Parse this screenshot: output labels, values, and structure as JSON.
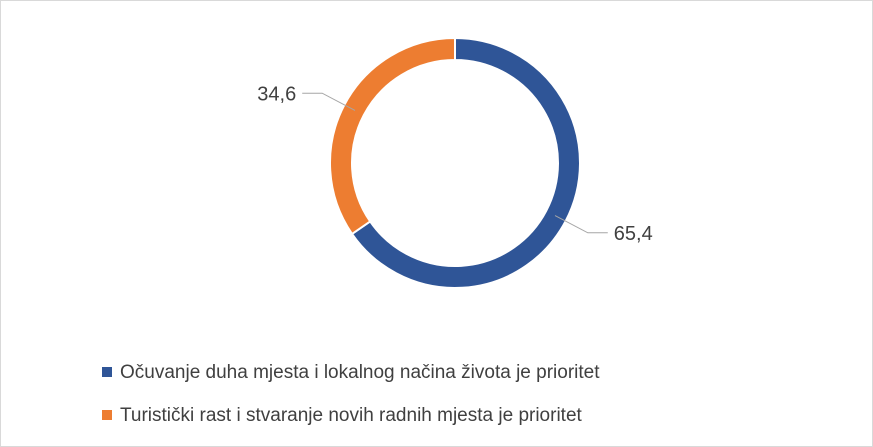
{
  "chart_data": {
    "type": "donut",
    "categories": [
      "Očuvanje duha mjesta i lokalnog načina života je prioritet",
      "Turistički rast i stvaranje novih radnih mjesta je prioritet"
    ],
    "values": [
      65.4,
      34.6
    ],
    "value_labels": [
      "65,4",
      "34,6"
    ],
    "colors": [
      "#2f5597",
      "#ed7d31"
    ],
    "legend": "bottom"
  }
}
